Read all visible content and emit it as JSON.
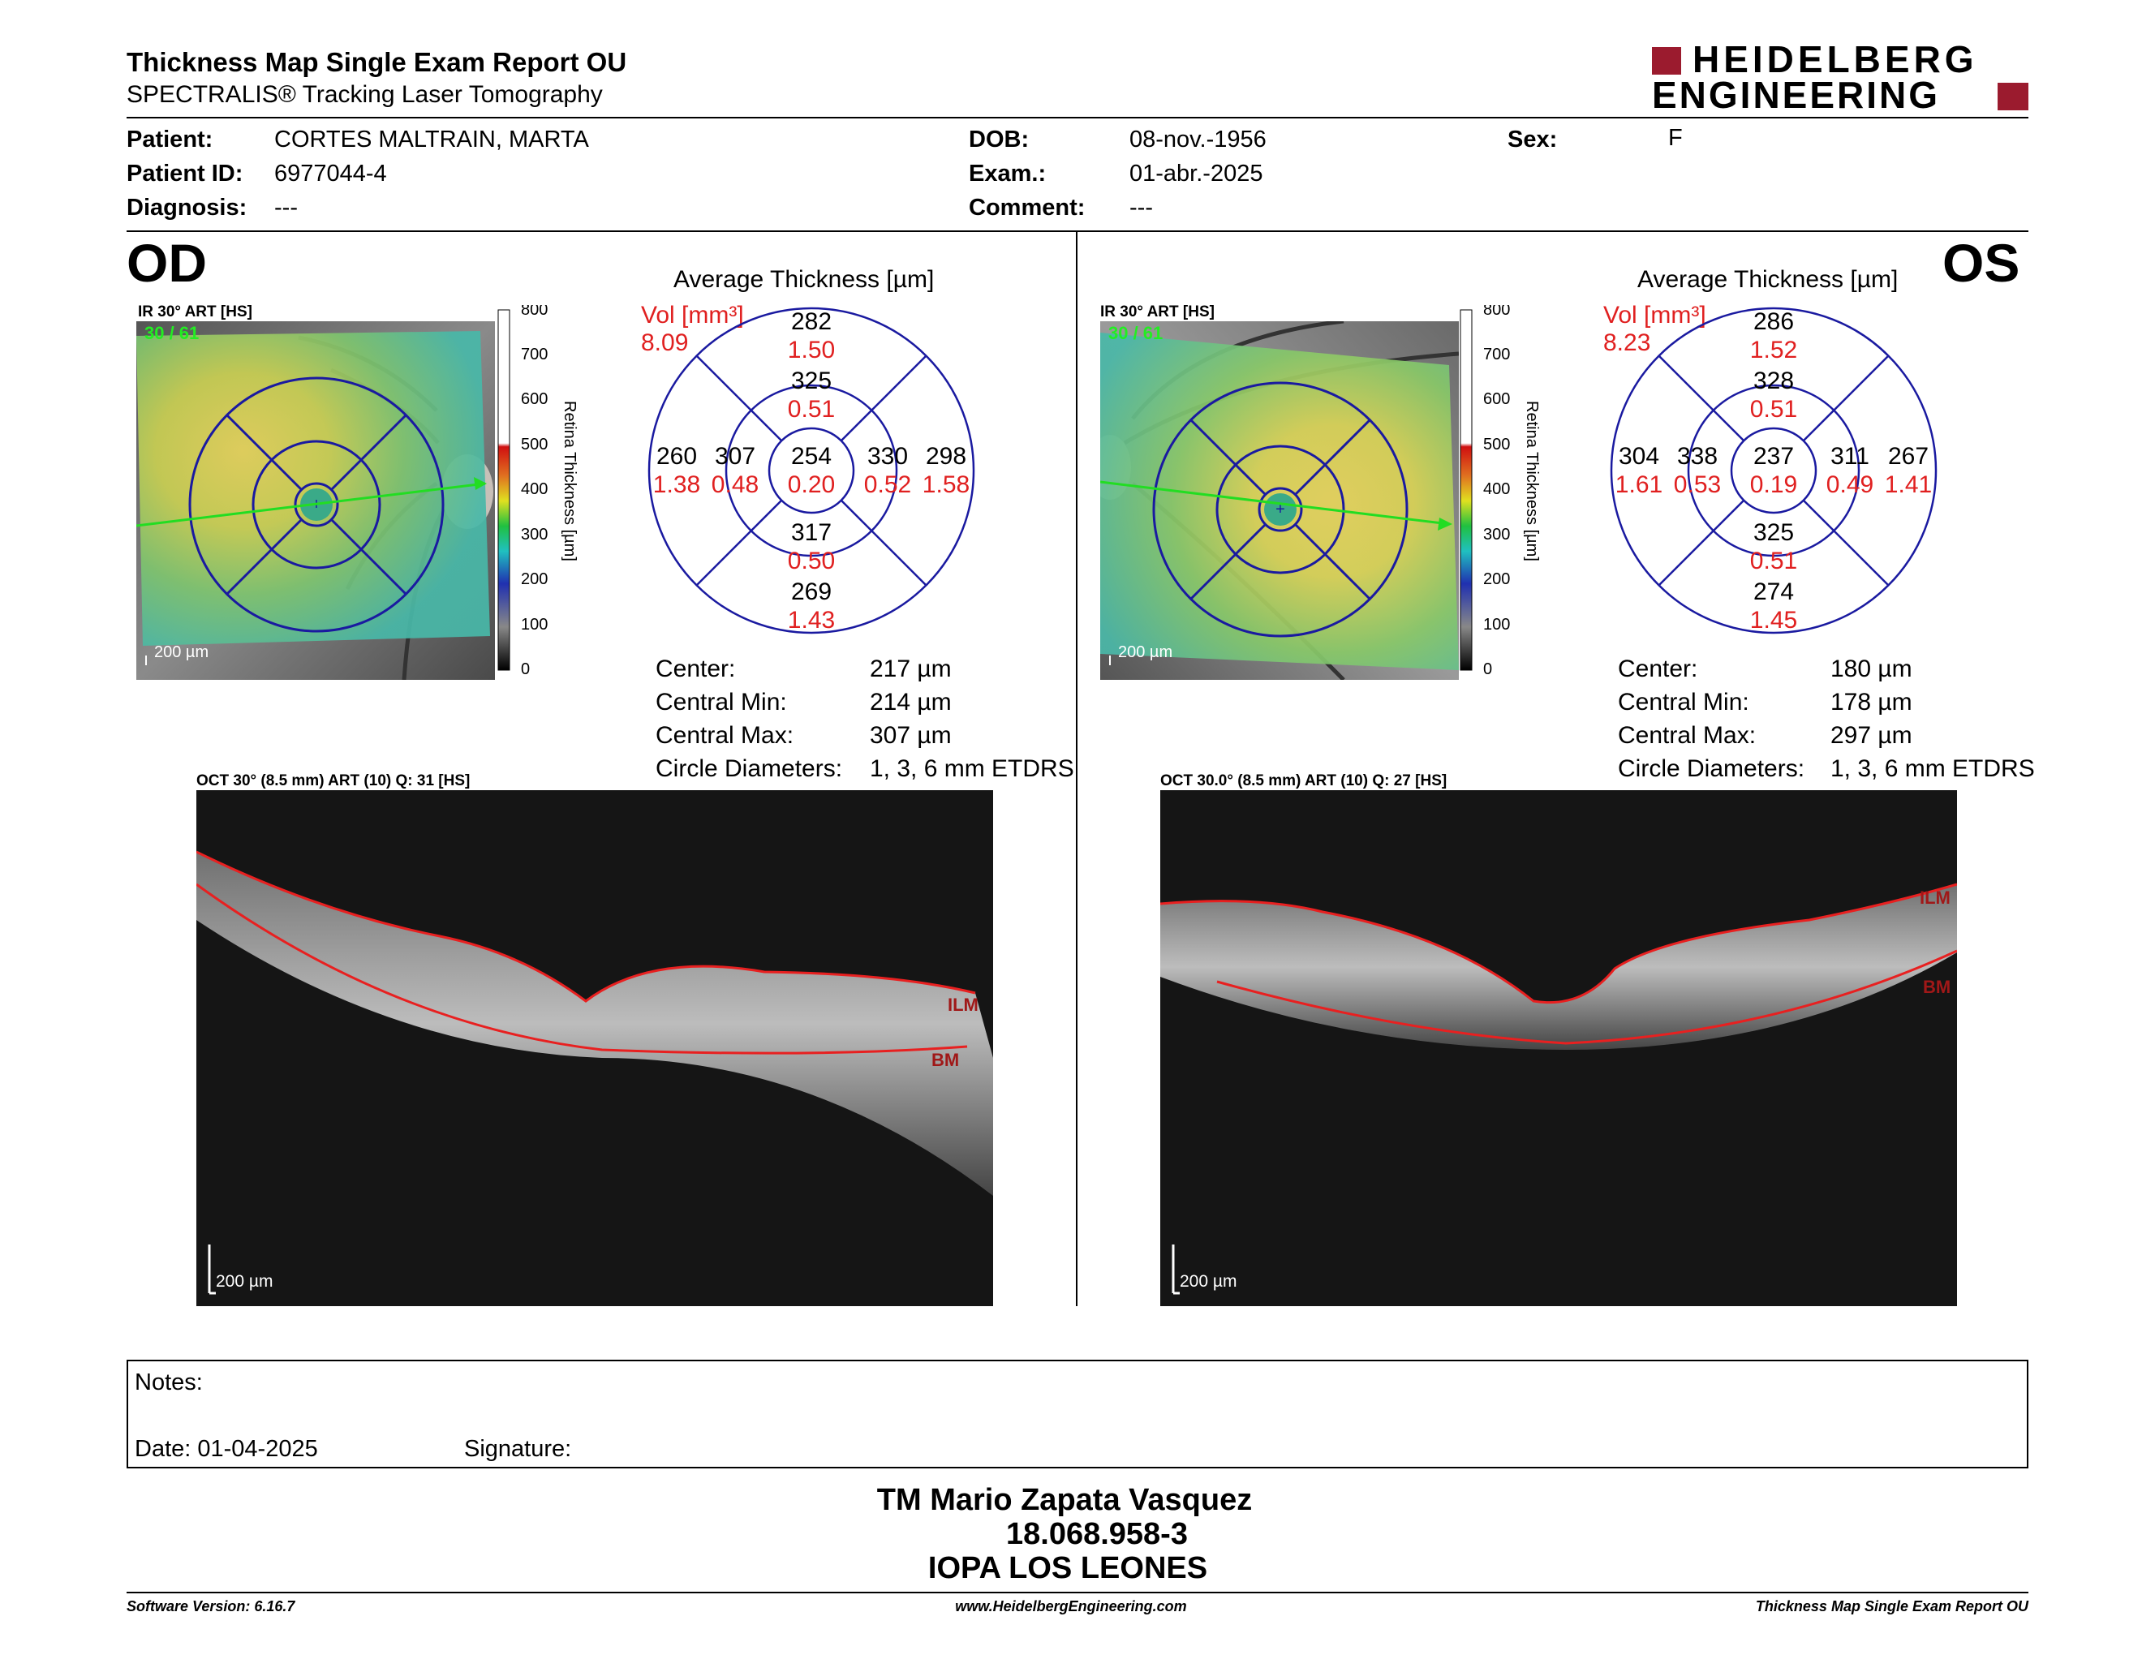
{
  "header": {
    "title": "Thickness Map Single Exam Report OU",
    "subtitle": "SPECTRALIS® Tracking Laser Tomography",
    "logo_line1": "HEIDELBERG",
    "logo_line2": "ENGINEERING"
  },
  "patient": {
    "patient_label": "Patient:",
    "patient_value": "CORTES MALTRAIN, MARTA",
    "id_label": "Patient ID:",
    "id_value": "6977044-4",
    "diagnosis_label": "Diagnosis:",
    "diagnosis_value": "---",
    "dob_label": "DOB:",
    "dob_value": "08-nov.-1956",
    "exam_label": "Exam.:",
    "exam_value": "01-abr.-2025",
    "comment_label": "Comment:",
    "comment_value": "---",
    "sex_label": "Sex:",
    "sex_value": "F"
  },
  "od": {
    "eye_label": "OD",
    "ir_label": "IR 30° ART [HS]",
    "ir_count": "30 / 61",
    "scale_label": "200 µm",
    "colorbar_ticks": [
      "800",
      "700",
      "600",
      "500",
      "400",
      "300",
      "200",
      "100",
      "0"
    ],
    "colorbar_title": "Retina  Thickness [µm]",
    "avg_title": "Average Thickness [µm]",
    "vol_label": "Vol [mm³]",
    "vol_value": "8.09",
    "sectors": {
      "outer_superior": {
        "t": "282",
        "v": "1.50"
      },
      "inner_superior": {
        "t": "325",
        "v": "0.51"
      },
      "outer_temporal": {
        "t": "260",
        "v": "1.38"
      },
      "inner_temporal": {
        "t": "307",
        "v": "0.48"
      },
      "center": {
        "t": "254",
        "v": "0.20"
      },
      "inner_nasal": {
        "t": "330",
        "v": "0.52"
      },
      "outer_nasal": {
        "t": "298",
        "v": "1.58"
      },
      "inner_inferior": {
        "t": "317",
        "v": "0.50"
      },
      "outer_inferior": {
        "t": "269",
        "v": "1.43"
      }
    },
    "stats": {
      "center_label": "Center:",
      "center_value": "217 µm",
      "min_label": "Central Min:",
      "min_value": "214 µm",
      "max_label": "Central Max:",
      "max_value": "307 µm",
      "circ_label": "Circle Diameters:",
      "circ_value": "1, 3, 6 mm ETDRS"
    },
    "oct_label": "OCT 30° (8.5 mm) ART (10) Q: 31 [HS]",
    "oct_scale": "200 µm",
    "ilm": "ILM",
    "bm": "BM"
  },
  "os": {
    "eye_label": "OS",
    "ir_label": "IR 30° ART [HS]",
    "ir_count": "30 / 61",
    "scale_label": "200 µm",
    "colorbar_ticks": [
      "800",
      "700",
      "600",
      "500",
      "400",
      "300",
      "200",
      "100",
      "0"
    ],
    "colorbar_title": "Retina  Thickness [µm]",
    "avg_title": "Average Thickness [µm]",
    "vol_label": "Vol [mm³]",
    "vol_value": "8.23",
    "sectors": {
      "outer_superior": {
        "t": "286",
        "v": "1.52"
      },
      "inner_superior": {
        "t": "328",
        "v": "0.51"
      },
      "outer_temporal": {
        "t": "304",
        "v": "1.61"
      },
      "inner_temporal": {
        "t": "338",
        "v": "0.53"
      },
      "center": {
        "t": "237",
        "v": "0.19"
      },
      "inner_nasal": {
        "t": "311",
        "v": "0.49"
      },
      "outer_nasal": {
        "t": "267",
        "v": "1.41"
      },
      "inner_inferior": {
        "t": "325",
        "v": "0.51"
      },
      "outer_inferior": {
        "t": "274",
        "v": "1.45"
      }
    },
    "stats": {
      "center_label": "Center:",
      "center_value": "180 µm",
      "min_label": "Central Min:",
      "min_value": "178 µm",
      "max_label": "Central Max:",
      "max_value": "297 µm",
      "circ_label": "Circle Diameters:",
      "circ_value": "1, 3, 6 mm ETDRS"
    },
    "oct_label": "OCT 30.0° (8.5 mm) ART (10) Q: 27 [HS]",
    "oct_scale": "200 µm",
    "ilm": "ILM",
    "bm": "BM"
  },
  "notes": {
    "notes_label": "Notes:",
    "date_label": "Date: 01-04-2025",
    "signature_label": "Signature:"
  },
  "signature_block": {
    "name": "TM Mario Zapata Vasquez",
    "id": "18.068.958-3",
    "place": "IOPA LOS LEONES"
  },
  "footer": {
    "software": "Software Version: 6.16.7",
    "website": "www.HeidelbergEngineering.com",
    "report": "Thickness Map Single Exam Report OU"
  },
  "colors": {
    "accent_red": "#e02020",
    "logo_red": "#9b1b2e",
    "circle_blue": "#1a1aa0"
  }
}
